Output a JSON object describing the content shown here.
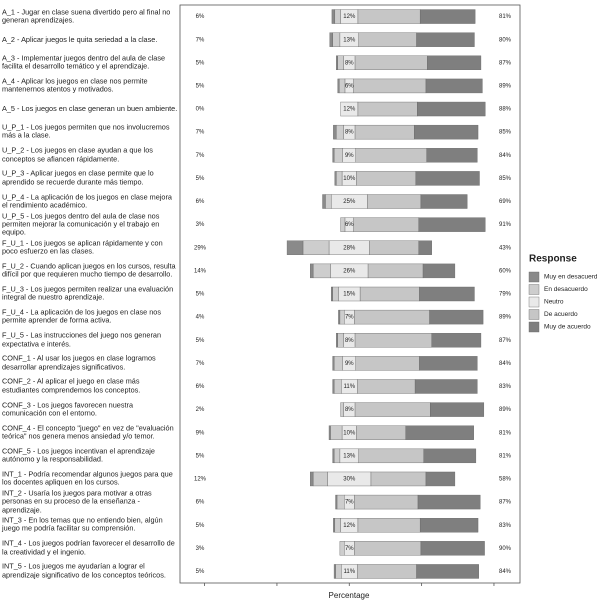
{
  "chart_data": {
    "type": "diverging-bar",
    "x_label": "Percentage",
    "legend_title": "Response",
    "legend_position": "right",
    "xlim": [
      -117,
      118
    ],
    "xticks": [
      -100,
      -50,
      0,
      50,
      100
    ],
    "categories": [
      "A_1 - Jugar en clase suena divertido pero al final no generan aprendizajes.",
      "A_2 - Aplicar juegos le quita seriedad a la clase.",
      "A_3 - Implementar juegos dentro del aula de clase facilita el desarrollo temático y el aprendizaje.",
      "A_4 - Aplicar los juegos en clase nos permite mantenernos atentos y motivados.",
      "A_5 - Los juegos en clase generan un buen ambiente.",
      "U_P_1 - Los juegos permiten que nos involucremos más a la clase.",
      "U_P_2 - Los juegos en clase ayudan a que los conceptos se afiancen rápidamente.",
      "U_P_3 - Aplicar juegos en clase permite que lo aprendido se recuerde durante más tiempo.",
      "U_P_4 - La aplicación de los juegos en clase mejora el rendimiento académico.",
      "U_P_5 - Los juegos dentro del aula de clase nos permiten mejorar la comunicación y el trabajo en equipo.",
      "F_U_1 - Los juegos se aplican rápidamente y con poco esfuerzo en las clases.",
      "F_U_2 - Cuando aplican juegos en los cursos, resulta difícil por que requieren mucho tiempo de desarrollo.",
      "F_U_3 - Los juegos permiten realizar una evaluación integral de nuestro aprendizaje.",
      "F_U_4 - La aplicación de los juegos en clase nos permite aprender de forma activa.",
      "F_U_5 - Las instrucciones del juego nos generan expectativa e interés.",
      "CONF_1 - Al usar los juegos en clase logramos desarrollar aprendizajes significativos.",
      "CONF_2 - Al aplicar el juego en clase más estudiantes comprendemos los conceptos.",
      "CONF_3 - Los juegos favorecen nuestra comunicación con el entorno.",
      "CONF_4 - El concepto \"juego\" en vez de \"evaluación teórica\" nos genera menos ansiedad y/o temor.",
      "CONF_5 - Los juegos incentivan el aprendizaje autónomo y la responsabilidad.",
      "INT_1 - Podría recomendar algunos juegos para que los docentes apliquen en los cursos.",
      "INT_2 - Usaría los juegos para motivar a otras personas en su proceso de la enseñanza - aprendizaje.",
      "INT_3 - En los temas que no entiendo bien, algún juego me podría facilitar su comprensión.",
      "INT_4 - Los juegos podrían favorecer el desarrollo de la creatividad y el ingenio.",
      "INT_5 - Los juegos me ayudarían a lograr el aprendizaje significativo de los conceptos teóricos."
    ],
    "series": [
      {
        "name": "Muy en desacuerdo",
        "color": "#8a8a8a",
        "side": "left",
        "values": [
          2,
          2,
          1,
          1,
          0,
          2,
          1,
          1,
          2,
          0,
          11,
          2,
          1,
          1,
          1,
          1,
          1,
          0,
          1,
          1,
          2,
          1,
          1,
          0,
          1
        ]
      },
      {
        "name": "En desacuerdo",
        "color": "#cdcdcd",
        "side": "left",
        "values": [
          4,
          5,
          4,
          4,
          0,
          5,
          6,
          4,
          4,
          3,
          18,
          12,
          4,
          3,
          4,
          6,
          5,
          2,
          8,
          4,
          10,
          5,
          4,
          3,
          4
        ]
      },
      {
        "name": "Neutro",
        "color": "#e9e9e9",
        "side": "center",
        "values": [
          12,
          13,
          8,
          6,
          12,
          8,
          9,
          10,
          25,
          6,
          28,
          26,
          15,
          7,
          8,
          9,
          11,
          8,
          10,
          13,
          30,
          7,
          12,
          7,
          11
        ]
      },
      {
        "name": "De acuerdo",
        "color": "#c6c6c6",
        "side": "right",
        "values": [
          43,
          40,
          50,
          50,
          41,
          41,
          49,
          41,
          37,
          45,
          34,
          38,
          41,
          52,
          53,
          44,
          40,
          52,
          34,
          45,
          38,
          44,
          43,
          46,
          41
        ]
      },
      {
        "name": "Muy de acuerdo",
        "color": "#7f7f7f",
        "side": "right",
        "values": [
          38,
          40,
          37,
          39,
          47,
          44,
          35,
          44,
          32,
          46,
          9,
          22,
          38,
          37,
          34,
          40,
          43,
          37,
          47,
          36,
          20,
          43,
          40,
          44,
          43
        ]
      }
    ],
    "left_totals": {
      "values": [
        6,
        7,
        5,
        5,
        0,
        7,
        7,
        5,
        6,
        3,
        29,
        14,
        5,
        4,
        5,
        7,
        6,
        2,
        9,
        5,
        12,
        6,
        5,
        3,
        5
      ],
      "value_labels": [
        "6%",
        "7%",
        "5%",
        "5%",
        "0%",
        "7%",
        "7%",
        "5%",
        "6%",
        "3%",
        "29%",
        "14%",
        "5%",
        "4%",
        "5%",
        "7%",
        "6%",
        "2%",
        "9%",
        "5%",
        "12%",
        "6%",
        "5%",
        "3%",
        "5%"
      ]
    },
    "neutral_totals": {
      "values": [
        12,
        13,
        8,
        6,
        12,
        8,
        9,
        10,
        25,
        6,
        28,
        26,
        15,
        7,
        8,
        9,
        11,
        8,
        10,
        13,
        30,
        7,
        12,
        7,
        11
      ],
      "value_labels": [
        "12%",
        "13%",
        "8%",
        "6%",
        "12%",
        "8%",
        "9%",
        "10%",
        "25%",
        "6%",
        "28%",
        "26%",
        "15%",
        "7%",
        "8%",
        "9%",
        "11%",
        "8%",
        "10%",
        "13%",
        "30%",
        "7%",
        "12%",
        "7%",
        "11%"
      ]
    },
    "right_totals": {
      "values": [
        81,
        80,
        87,
        89,
        88,
        85,
        84,
        85,
        69,
        91,
        43,
        60,
        79,
        89,
        87,
        84,
        83,
        89,
        81,
        81,
        58,
        87,
        83,
        90,
        84
      ],
      "value_labels": [
        "81%",
        "80%",
        "87%",
        "89%",
        "88%",
        "85%",
        "84%",
        "85%",
        "69%",
        "91%",
        "43%",
        "60%",
        "79%",
        "89%",
        "87%",
        "84%",
        "83%",
        "89%",
        "81%",
        "81%",
        "58%",
        "87%",
        "83%",
        "90%",
        "84%"
      ]
    }
  }
}
